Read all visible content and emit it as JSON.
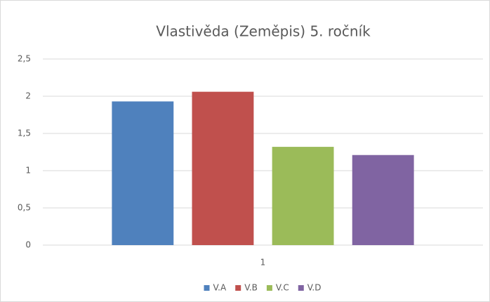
{
  "chart_data": {
    "type": "bar",
    "title": "Vlastivěda (Zeměpis) 5. ročník",
    "categories": [
      "1"
    ],
    "series": [
      {
        "name": "V.A",
        "color": "#4f81bd",
        "values": [
          1.93
        ]
      },
      {
        "name": "V.B",
        "color": "#c0504d",
        "values": [
          2.06
        ]
      },
      {
        "name": "V.C",
        "color": "#9bbb59",
        "values": [
          1.32
        ]
      },
      {
        "name": "V.D",
        "color": "#8064a2",
        "values": [
          1.21
        ]
      }
    ],
    "ylim": [
      0,
      2.5
    ],
    "yticks": [
      0,
      {
        "value": 0.5,
        "label": "0,5"
      },
      1,
      {
        "value": 1.5,
        "label": "1,5"
      },
      2,
      {
        "value": 2.5,
        "label": "2,5"
      }
    ],
    "grid": true,
    "legend": "bottom"
  }
}
